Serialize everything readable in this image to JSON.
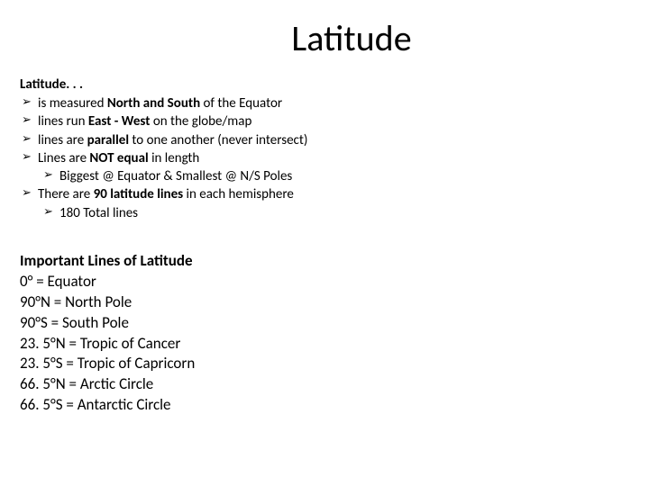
{
  "title": "Latitude",
  "section1_heading": "Latitude. . .",
  "bullets": {
    "b1_pre": "is measured ",
    "b1_bold": "North and South",
    "b1_post": " of the Equator",
    "b2_pre": "lines run ",
    "b2_bold": "East - West ",
    "b2_post": "on the globe/map",
    "b3_pre": "lines are ",
    "b3_bold": "parallel ",
    "b3_post": "to one another (never intersect)",
    "b4_pre": "Lines are ",
    "b4_bold": "NOT equal ",
    "b4_post": "in length",
    "s4a": "Biggest @ Equator & Smallest @ N/S Poles",
    "b5_pre": "There are ",
    "b5_bold": "90 latitude lines ",
    "b5_post": "in each hemisphere",
    "s5a": "180 Total lines"
  },
  "important": {
    "heading": "Important Lines of Latitude",
    "l1": "0° = Equator",
    "l2": "90°N = North Pole",
    "l3": "90°S  = South Pole",
    "l4": "23. 5°N = Tropic of Cancer",
    "l5": "23. 5°S = Tropic of Capricorn",
    "l6": "66. 5°N = Arctic Circle",
    "l7": "66. 5°S = Antarctic Circle"
  },
  "colors": {
    "background": "#ffffff",
    "text": "#000000"
  },
  "typography": {
    "title_fontsize": 40,
    "body_fontsize": 15,
    "important_fontsize": 17,
    "font_family": "Calibri"
  }
}
